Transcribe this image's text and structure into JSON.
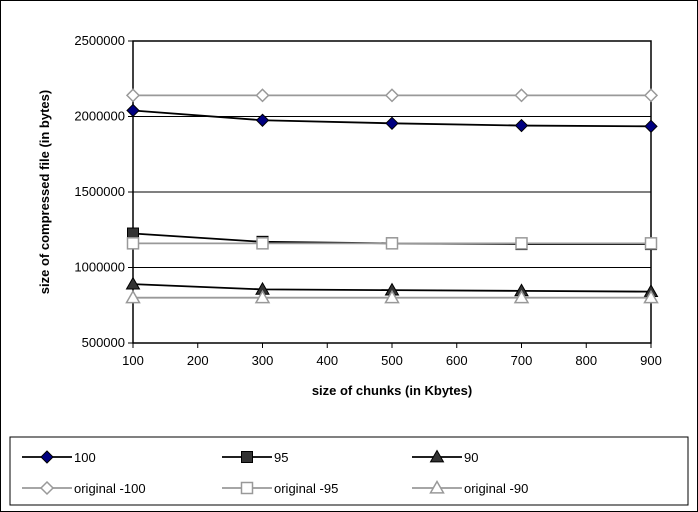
{
  "chart_data": {
    "type": "line",
    "title": "",
    "xlabel": "size of chunks (in Kbytes)",
    "ylabel": "size of compressed file (in bytes)",
    "x": [
      100,
      300,
      500,
      700,
      900
    ],
    "xlim": [
      100,
      900
    ],
    "ylim": [
      500000,
      2500000
    ],
    "xticks": [
      "100",
      "200",
      "300",
      "400",
      "500",
      "600",
      "700",
      "800",
      "900"
    ],
    "yticks": [
      "500000",
      "1000000",
      "1500000",
      "2000000",
      "2500000"
    ],
    "grid": "horizontal",
    "legend_position": "bottom",
    "series": [
      {
        "name": "100",
        "values": [
          2040000,
          1975000,
          1955000,
          1940000,
          1935000
        ],
        "color": "#000080",
        "line_color": "#000000",
        "marker": "diamond-filled"
      },
      {
        "name": "95",
        "values": [
          1225000,
          1170000,
          1160000,
          1155000,
          1155000
        ],
        "color": "#333333",
        "line_color": "#000000",
        "marker": "square-filled"
      },
      {
        "name": "90",
        "values": [
          890000,
          855000,
          850000,
          845000,
          840000
        ],
        "color": "#333333",
        "line_color": "#000000",
        "marker": "triangle-filled"
      },
      {
        "name": "original -100",
        "values": [
          2140000,
          2140000,
          2140000,
          2140000,
          2140000
        ],
        "color": "#999999",
        "line_color": "#999999",
        "marker": "diamond-open"
      },
      {
        "name": "original -95",
        "values": [
          1160000,
          1160000,
          1160000,
          1160000,
          1160000
        ],
        "color": "#999999",
        "line_color": "#999999",
        "marker": "square-open"
      },
      {
        "name": "original -90",
        "values": [
          800000,
          800000,
          800000,
          800000,
          800000
        ],
        "color": "#999999",
        "line_color": "#999999",
        "marker": "triangle-open"
      }
    ]
  }
}
